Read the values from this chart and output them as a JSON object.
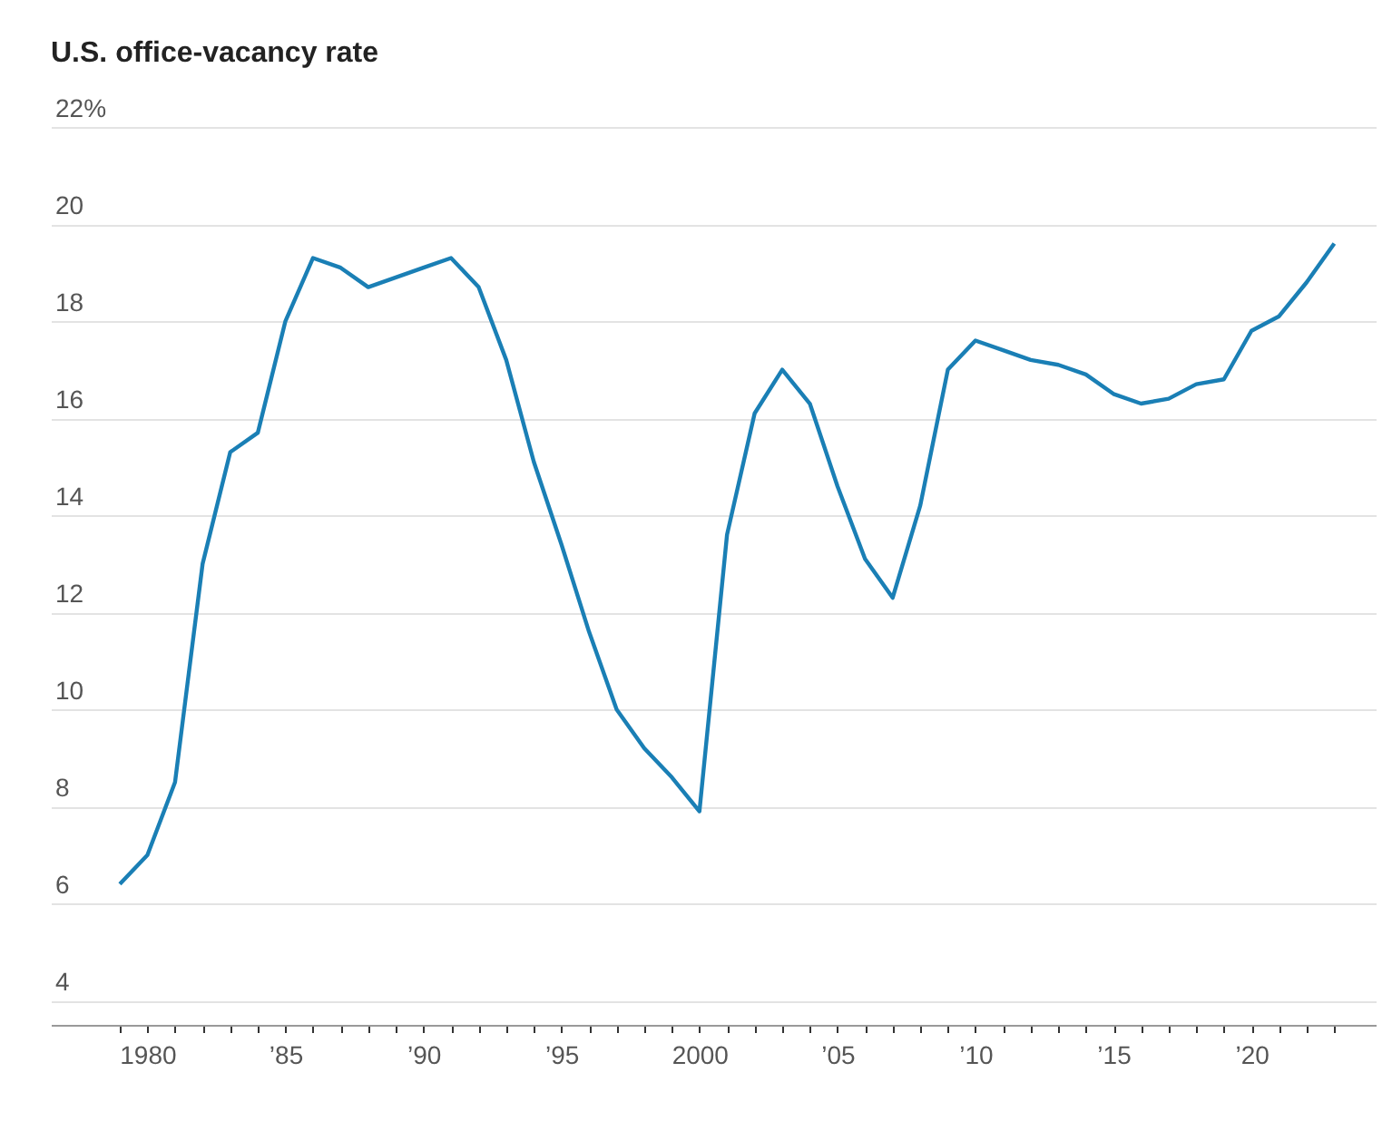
{
  "chart_data": {
    "type": "line",
    "title": "U.S. office-vacancy rate",
    "x": [
      1979,
      1980,
      1981,
      1982,
      1983,
      1984,
      1985,
      1986,
      1987,
      1988,
      1989,
      1990,
      1991,
      1992,
      1993,
      1994,
      1995,
      1996,
      1997,
      1998,
      1999,
      2000,
      2001,
      2002,
      2003,
      2004,
      2005,
      2006,
      2007,
      2008,
      2009,
      2010,
      2011,
      2012,
      2013,
      2014,
      2015,
      2016,
      2017,
      2018,
      2019,
      2020,
      2021,
      2022,
      2023
    ],
    "series": [
      {
        "color": "#1a7fb5",
        "values": [
          6.4,
          7.0,
          8.5,
          13.0,
          15.3,
          15.7,
          18.0,
          19.3,
          19.1,
          18.7,
          18.9,
          19.1,
          19.3,
          18.7,
          17.2,
          15.1,
          13.4,
          11.6,
          10.0,
          9.2,
          8.6,
          7.9,
          13.6,
          16.1,
          17.0,
          16.3,
          14.6,
          13.1,
          12.3,
          14.2,
          17.0,
          17.6,
          17.4,
          17.2,
          17.1,
          16.9,
          16.5,
          16.3,
          16.4,
          16.7,
          16.8,
          17.8,
          18.1,
          18.8,
          19.6
        ]
      }
    ],
    "xlim": [
      1976.5,
      2024.5
    ],
    "xticks": [
      {
        "value": 1979,
        "label": null
      },
      1980,
      {
        "value": 1981,
        "label": null
      },
      {
        "value": 1982,
        "label": null
      },
      {
        "value": 1983,
        "label": null
      },
      {
        "value": 1984,
        "label": null
      },
      {
        "value": 1985,
        "label": "’85"
      },
      {
        "value": 1986,
        "label": null
      },
      {
        "value": 1987,
        "label": null
      },
      {
        "value": 1988,
        "label": null
      },
      {
        "value": 1989,
        "label": null
      },
      {
        "value": 1990,
        "label": "’90"
      },
      {
        "value": 1991,
        "label": null
      },
      {
        "value": 1992,
        "label": null
      },
      {
        "value": 1993,
        "label": null
      },
      {
        "value": 1994,
        "label": null
      },
      {
        "value": 1995,
        "label": "’95"
      },
      {
        "value": 1996,
        "label": null
      },
      {
        "value": 1997,
        "label": null
      },
      {
        "value": 1998,
        "label": null
      },
      {
        "value": 1999,
        "label": null
      },
      2000,
      {
        "value": 2001,
        "label": null
      },
      {
        "value": 2002,
        "label": null
      },
      {
        "value": 2003,
        "label": null
      },
      {
        "value": 2004,
        "label": null
      },
      {
        "value": 2005,
        "label": "’05"
      },
      {
        "value": 2006,
        "label": null
      },
      {
        "value": 2007,
        "label": null
      },
      {
        "value": 2008,
        "label": null
      },
      {
        "value": 2009,
        "label": null
      },
      {
        "value": 2010,
        "label": "’10"
      },
      {
        "value": 2011,
        "label": null
      },
      {
        "value": 2012,
        "label": null
      },
      {
        "value": 2013,
        "label": null
      },
      {
        "value": 2014,
        "label": null
      },
      {
        "value": 2015,
        "label": "’15"
      },
      {
        "value": 2016,
        "label": null
      },
      {
        "value": 2017,
        "label": null
      },
      {
        "value": 2018,
        "label": null
      },
      {
        "value": 2019,
        "label": null
      },
      {
        "value": 2020,
        "label": "’20"
      },
      {
        "value": 2021,
        "label": null
      },
      {
        "value": 2022,
        "label": null
      },
      {
        "value": 2023,
        "label": null
      }
    ],
    "ylim": [
      3.5,
      22
    ],
    "yticks": [
      4,
      6,
      8,
      10,
      12,
      14,
      16,
      18,
      20,
      {
        "value": 22,
        "label": "22%"
      }
    ],
    "grid": "y",
    "marker": "none",
    "line_style": "solid"
  }
}
